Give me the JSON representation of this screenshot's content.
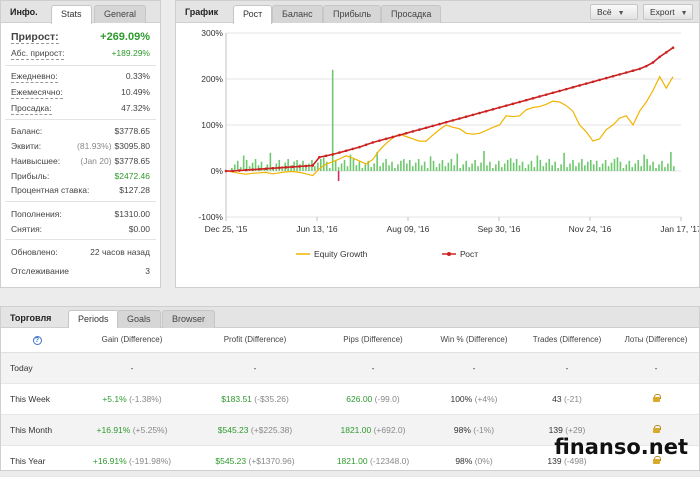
{
  "info": {
    "title": "Инфо.",
    "tabs": [
      "Stats",
      "General"
    ],
    "growth": {
      "label": "Прирост:",
      "value": "+269.09%"
    },
    "abs_growth": {
      "label": "Абс. прирост:",
      "value": "+189.29%"
    },
    "daily": {
      "label": "Ежедневно:",
      "value": "0.33%"
    },
    "monthly": {
      "label": "Ежемесячно:",
      "value": "10.49%"
    },
    "drawdown": {
      "label": "Просадка:",
      "value": "47.32%"
    },
    "balance": {
      "label": "Баланс:",
      "value": "$3778.65"
    },
    "equity": {
      "label": "Эквити:",
      "sub": "(81.93%)",
      "value": "$3095.80"
    },
    "highest": {
      "label": "Наивысшее:",
      "sub": "(Jan 20)",
      "value": "$3778.65"
    },
    "profit": {
      "label": "Прибыль:",
      "value": "$2472.46"
    },
    "interest": {
      "label": "Процентная ставка:",
      "value": "$127.28"
    },
    "deposits": {
      "label": "Пополнения:",
      "value": "$1310.00"
    },
    "withdrawals": {
      "label": "Снятия:",
      "value": "$0.00"
    },
    "updated": {
      "label": "Обновлено:",
      "value": "22 часов назад"
    },
    "tracking": {
      "label": "Отслеживание",
      "value": "3"
    }
  },
  "chart_panel": {
    "title": "График",
    "tabs": [
      "Рост",
      "Баланс",
      "Прибыль",
      "Просадка"
    ],
    "buttons": {
      "all": "Всё",
      "export": "Export"
    }
  },
  "colors": {
    "growth_line": "#cc2222",
    "equity_line": "#f0b400",
    "bars": "#6ec86e",
    "bar_negative": "#cc3366",
    "positive": "#2e9a2e"
  },
  "chart_data": {
    "type": "line",
    "x_tick_labels": [
      "Dec 25, '15",
      "Jun 13, '16",
      "Aug 09, '16",
      "Sep 30, '16",
      "Nov 24, '16",
      "Jan 17, '17"
    ],
    "y_tick_labels": [
      "300%",
      "200%",
      "100%",
      "0%",
      "-100%"
    ],
    "ylim": [
      -100,
      300
    ],
    "series": [
      {
        "name": "Equity Growth",
        "color": "#f0b400",
        "values": [
          0,
          -2,
          -5,
          -7,
          -5,
          -4,
          -3,
          -6,
          -4,
          -2,
          -1,
          -3,
          -6,
          -10,
          5,
          15,
          20,
          26,
          33,
          28,
          22,
          15,
          25,
          45,
          60,
          72,
          80,
          75,
          70,
          65,
          65,
          78,
          90,
          100,
          95,
          92,
          82,
          80,
          82,
          88,
          95,
          100,
          120,
          118,
          120,
          133,
          138,
          140,
          145,
          152,
          150,
          142,
          130,
          100,
          85,
          65,
          70,
          90,
          100,
          115,
          120,
          100,
          130,
          150,
          175,
          205,
          180,
          205
        ]
      },
      {
        "name": "Рост",
        "color": "#cc2222",
        "values": [
          0,
          0,
          1,
          2,
          3,
          4,
          5,
          6,
          7,
          8,
          9,
          10,
          11,
          12,
          30,
          33,
          36,
          40,
          44,
          48,
          52,
          57,
          62,
          66,
          70,
          74,
          78,
          82,
          86,
          90,
          94,
          98,
          102,
          106,
          110,
          114,
          118,
          122,
          126,
          130,
          134,
          138,
          142,
          146,
          150,
          154,
          158,
          162,
          166,
          170,
          174,
          178,
          182,
          186,
          190,
          194,
          198,
          202,
          206,
          210,
          214,
          218,
          222,
          228,
          236,
          248,
          258,
          268
        ]
      }
    ],
    "volume_bars_max_percent": 220,
    "legend": [
      "Equity Growth",
      "Рост"
    ],
    "legend_position": "bottom",
    "grid": true
  },
  "trading": {
    "title": "Торговля",
    "tabs": [
      "Periods",
      "Goals",
      "Browser"
    ],
    "columns": [
      "Gain (Difference)",
      "Profit (Difference)",
      "Pips (Difference)",
      "Win % (Difference)",
      "Trades (Difference)",
      "Лоты (Difference)"
    ],
    "rows": [
      {
        "period": "Today",
        "gain": "-",
        "gain_diff": "",
        "profit": "-",
        "profit_diff": "",
        "pips": "-",
        "pips_diff": "",
        "win": "-",
        "win_diff": "",
        "trades": "-",
        "trades_diff": "",
        "lots": "-"
      },
      {
        "period": "This Week",
        "gain": "+5.1%",
        "gain_diff": "(-1.38%)",
        "profit": "$183.51",
        "profit_diff": "(-$35.26)",
        "pips": "626.00",
        "pips_diff": "(-99.0)",
        "win": "100%",
        "win_diff": "(+4%)",
        "trades": "43",
        "trades_diff": "(-21)",
        "lots": "lock"
      },
      {
        "period": "This Month",
        "gain": "+16.91%",
        "gain_diff": "(+5.25%)",
        "profit": "$545.23",
        "profit_diff": "(+$225.38)",
        "pips": "1821.00",
        "pips_diff": "(+692.0)",
        "win": "98%",
        "win_diff": "(-1%)",
        "trades": "139",
        "trades_diff": "(+29)",
        "lots": "lock"
      },
      {
        "period": "This Year",
        "gain": "+16.91%",
        "gain_diff": "(-191.98%)",
        "profit": "$545.23",
        "profit_diff": "(+$1370.96)",
        "pips": "1821.00",
        "pips_diff": "(-12348.0)",
        "win": "98%",
        "win_diff": "(0%)",
        "trades": "139",
        "trades_diff": "(-498)",
        "lots": "lock"
      }
    ]
  },
  "watermark": "finanso.net"
}
